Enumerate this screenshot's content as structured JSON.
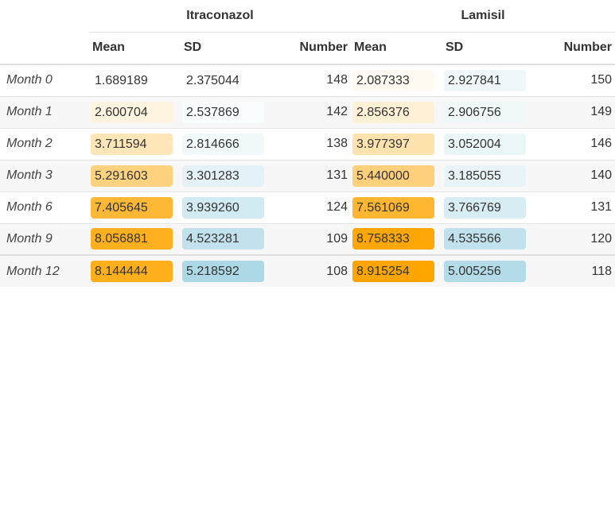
{
  "groups": [
    {
      "label": "Itraconazol"
    },
    {
      "label": "Lamisil"
    }
  ],
  "columns": [
    "Mean",
    "SD",
    "Number"
  ],
  "rows": [
    {
      "label": "Month 0",
      "itr_mean": "1.689189",
      "itr_sd": "2.375044",
      "itr_n": "148",
      "lam_mean": "2.087333",
      "lam_sd": "2.927841",
      "lam_n": "150"
    },
    {
      "label": "Month 1",
      "itr_mean": "2.600704",
      "itr_sd": "2.537869",
      "itr_n": "142",
      "lam_mean": "2.856376",
      "lam_sd": "2.906756",
      "lam_n": "149"
    },
    {
      "label": "Month 2",
      "itr_mean": "3.711594",
      "itr_sd": "2.814666",
      "itr_n": "138",
      "lam_mean": "3.977397",
      "lam_sd": "3.052004",
      "lam_n": "146"
    },
    {
      "label": "Month 3",
      "itr_mean": "5.291603",
      "itr_sd": "3.301283",
      "itr_n": "131",
      "lam_mean": "5.440000",
      "lam_sd": "3.185055",
      "lam_n": "140"
    },
    {
      "label": "Month 6",
      "itr_mean": "7.405645",
      "itr_sd": "3.939260",
      "itr_n": "124",
      "lam_mean": "7.561069",
      "lam_sd": "3.766769",
      "lam_n": "131"
    },
    {
      "label": "Month 9",
      "itr_mean": "8.056881",
      "itr_sd": "4.523281",
      "itr_n": "109",
      "lam_mean": "8.758333",
      "lam_sd": "4.535566",
      "lam_n": "120"
    },
    {
      "label": "Month 12",
      "itr_mean": "8.144444",
      "itr_sd": "5.218592",
      "itr_n": "108",
      "lam_mean": "8.915254",
      "lam_sd": "5.005256",
      "lam_n": "118"
    }
  ],
  "colors": {
    "mean_scale_high": "#FFA500",
    "sd_scale_high": "#ADD8E6",
    "stripe": "#f7f7f7",
    "rule": "#dddddd"
  },
  "chart_data": {
    "type": "table",
    "column_groups": [
      "Itraconazol",
      "Lamisil"
    ],
    "columns": [
      "Mean",
      "SD",
      "Number"
    ],
    "row_labels": [
      "Month 0",
      "Month 1",
      "Month 2",
      "Month 3",
      "Month 6",
      "Month 9",
      "Month 12"
    ],
    "series": [
      {
        "name": "Itraconazol Mean",
        "values": [
          1.689189,
          2.600704,
          3.711594,
          5.291603,
          7.405645,
          8.056881,
          8.144444
        ]
      },
      {
        "name": "Itraconazol SD",
        "values": [
          2.375044,
          2.537869,
          2.814666,
          3.301283,
          3.93926,
          4.523281,
          5.218592
        ]
      },
      {
        "name": "Itraconazol Number",
        "values": [
          148,
          142,
          138,
          131,
          124,
          109,
          108
        ]
      },
      {
        "name": "Lamisil Mean",
        "values": [
          2.087333,
          2.856376,
          3.977397,
          5.44,
          7.561069,
          8.758333,
          8.915254
        ]
      },
      {
        "name": "Lamisil SD",
        "values": [
          2.927841,
          2.906756,
          3.052004,
          3.185055,
          3.766769,
          4.535566,
          5.005256
        ]
      },
      {
        "name": "Lamisil Number",
        "values": [
          150,
          149,
          146,
          140,
          131,
          120,
          118
        ]
      }
    ],
    "color_scales": {
      "Mean": {
        "low": "#FFFFFF",
        "high": "#FFA500"
      },
      "SD": {
        "low": "#FFFFFF",
        "high": "#ADD8E6"
      }
    }
  }
}
